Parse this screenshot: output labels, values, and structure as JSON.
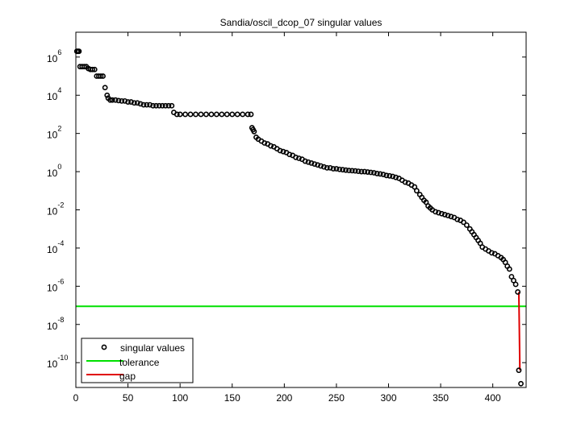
{
  "chart_data": {
    "type": "scatter",
    "title": "Sandia/oscil_dcop_07 singular values",
    "xlabel": "",
    "ylabel": "",
    "yscale": "log",
    "xlim": [
      0,
      432
    ],
    "ylim_log10": [
      -11.3,
      7.3
    ],
    "xticks": [
      0,
      50,
      100,
      150,
      200,
      250,
      300,
      350,
      400
    ],
    "yticks_log10": [
      -10,
      -8,
      -6,
      -4,
      -2,
      0,
      2,
      4,
      6
    ],
    "grid": false,
    "legend_position": "lower left",
    "legend": [
      "singular values",
      "tolerance",
      "gap"
    ],
    "series": [
      {
        "name": "singular values",
        "marker": "circle-open",
        "color": "#000000",
        "points_log10": [
          [
            1,
            6.3
          ],
          [
            2,
            6.3
          ],
          [
            3,
            6.3
          ],
          [
            4,
            5.5
          ],
          [
            6,
            5.5
          ],
          [
            8,
            5.5
          ],
          [
            10,
            5.5
          ],
          [
            12,
            5.4
          ],
          [
            14,
            5.35
          ],
          [
            16,
            5.35
          ],
          [
            18,
            5.35
          ],
          [
            20,
            5.0
          ],
          [
            22,
            5.0
          ],
          [
            24,
            5.0
          ],
          [
            26,
            5.0
          ],
          [
            28,
            4.4
          ],
          [
            30,
            4.0
          ],
          [
            31,
            3.85
          ],
          [
            33,
            3.75
          ],
          [
            35,
            3.75
          ],
          [
            38,
            3.75
          ],
          [
            41,
            3.72
          ],
          [
            44,
            3.7
          ],
          [
            47,
            3.7
          ],
          [
            50,
            3.65
          ],
          [
            53,
            3.65
          ],
          [
            56,
            3.6
          ],
          [
            59,
            3.6
          ],
          [
            62,
            3.55
          ],
          [
            65,
            3.5
          ],
          [
            68,
            3.5
          ],
          [
            71,
            3.5
          ],
          [
            74,
            3.45
          ],
          [
            77,
            3.45
          ],
          [
            80,
            3.45
          ],
          [
            83,
            3.45
          ],
          [
            86,
            3.45
          ],
          [
            89,
            3.45
          ],
          [
            92,
            3.45
          ],
          [
            94,
            3.1
          ],
          [
            97,
            3.0
          ],
          [
            100,
            3.0
          ],
          [
            105,
            3.0
          ],
          [
            110,
            3.0
          ],
          [
            115,
            3.0
          ],
          [
            120,
            3.0
          ],
          [
            125,
            3.0
          ],
          [
            130,
            3.0
          ],
          [
            135,
            3.0
          ],
          [
            140,
            3.0
          ],
          [
            145,
            3.0
          ],
          [
            150,
            3.0
          ],
          [
            155,
            3.0
          ],
          [
            160,
            3.0
          ],
          [
            165,
            3.0
          ],
          [
            168,
            3.0
          ],
          [
            169,
            2.3
          ],
          [
            170,
            2.2
          ],
          [
            171,
            2.1
          ],
          [
            173,
            1.8
          ],
          [
            175,
            1.7
          ],
          [
            178,
            1.6
          ],
          [
            181,
            1.5
          ],
          [
            184,
            1.45
          ],
          [
            187,
            1.35
          ],
          [
            190,
            1.3
          ],
          [
            193,
            1.2
          ],
          [
            196,
            1.1
          ],
          [
            199,
            1.05
          ],
          [
            202,
            1.0
          ],
          [
            205,
            0.9
          ],
          [
            208,
            0.85
          ],
          [
            211,
            0.75
          ],
          [
            214,
            0.7
          ],
          [
            217,
            0.65
          ],
          [
            220,
            0.55
          ],
          [
            223,
            0.5
          ],
          [
            226,
            0.45
          ],
          [
            229,
            0.4
          ],
          [
            232,
            0.35
          ],
          [
            235,
            0.3
          ],
          [
            238,
            0.25
          ],
          [
            241,
            0.2
          ],
          [
            244,
            0.2
          ],
          [
            247,
            0.15
          ],
          [
            250,
            0.15
          ],
          [
            253,
            0.12
          ],
          [
            256,
            0.1
          ],
          [
            259,
            0.08
          ],
          [
            262,
            0.06
          ],
          [
            265,
            0.05
          ],
          [
            268,
            0.04
          ],
          [
            271,
            0.02
          ],
          [
            274,
            0.0
          ],
          [
            277,
            0.0
          ],
          [
            280,
            -0.02
          ],
          [
            283,
            -0.04
          ],
          [
            286,
            -0.06
          ],
          [
            289,
            -0.1
          ],
          [
            292,
            -0.12
          ],
          [
            295,
            -0.15
          ],
          [
            298,
            -0.2
          ],
          [
            301,
            -0.22
          ],
          [
            304,
            -0.25
          ],
          [
            307,
            -0.3
          ],
          [
            310,
            -0.35
          ],
          [
            313,
            -0.45
          ],
          [
            316,
            -0.55
          ],
          [
            319,
            -0.6
          ],
          [
            322,
            -0.7
          ],
          [
            325,
            -0.8
          ],
          [
            327,
            -1.0
          ],
          [
            330,
            -1.2
          ],
          [
            332,
            -1.35
          ],
          [
            334,
            -1.5
          ],
          [
            336,
            -1.6
          ],
          [
            338,
            -1.8
          ],
          [
            340,
            -1.9
          ],
          [
            342,
            -2.0
          ],
          [
            345,
            -2.1
          ],
          [
            348,
            -2.15
          ],
          [
            351,
            -2.2
          ],
          [
            354,
            -2.25
          ],
          [
            357,
            -2.3
          ],
          [
            360,
            -2.35
          ],
          [
            363,
            -2.4
          ],
          [
            366,
            -2.5
          ],
          [
            369,
            -2.55
          ],
          [
            372,
            -2.65
          ],
          [
            375,
            -2.8
          ],
          [
            378,
            -3.0
          ],
          [
            380,
            -3.15
          ],
          [
            382,
            -3.3
          ],
          [
            384,
            -3.45
          ],
          [
            386,
            -3.6
          ],
          [
            388,
            -3.75
          ],
          [
            390,
            -3.95
          ],
          [
            393,
            -4.05
          ],
          [
            396,
            -4.15
          ],
          [
            399,
            -4.25
          ],
          [
            402,
            -4.3
          ],
          [
            405,
            -4.4
          ],
          [
            408,
            -4.5
          ],
          [
            410,
            -4.6
          ],
          [
            412,
            -4.75
          ],
          [
            414,
            -4.95
          ],
          [
            416,
            -5.1
          ],
          [
            418,
            -5.5
          ],
          [
            420,
            -5.7
          ],
          [
            422,
            -5.9
          ],
          [
            424,
            -6.3
          ],
          [
            425,
            -10.4
          ],
          [
            427,
            -11.1
          ]
        ]
      },
      {
        "name": "tolerance",
        "type": "hline",
        "color": "#00e000",
        "y_log10": -7.05
      },
      {
        "name": "gap",
        "type": "line",
        "color": "#e00000",
        "points_log10": [
          [
            425,
            -6.3
          ],
          [
            425.5,
            -8.3
          ],
          [
            426,
            -10.4
          ]
        ]
      }
    ]
  }
}
